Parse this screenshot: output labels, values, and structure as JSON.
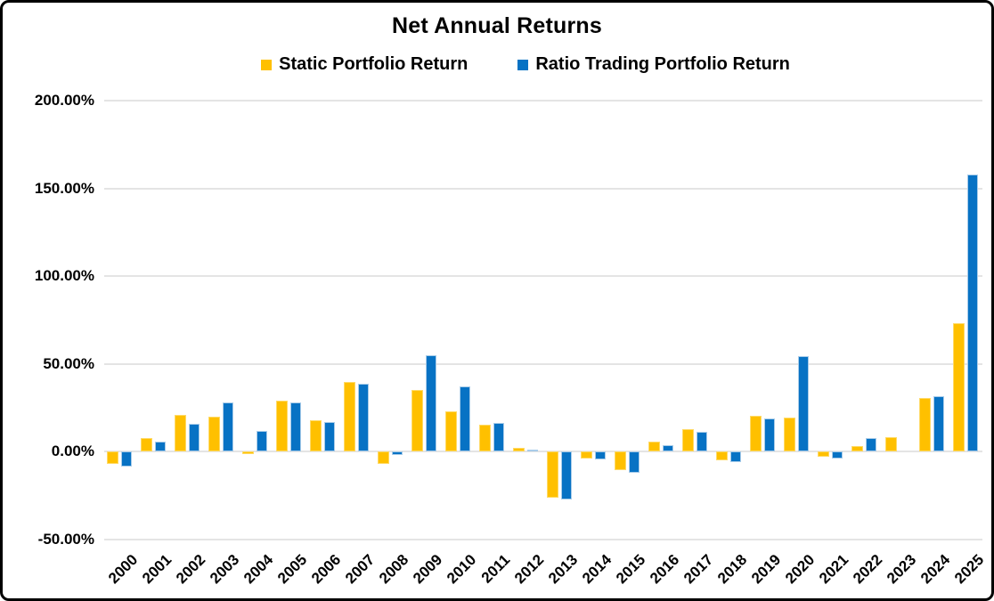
{
  "frame": {
    "background": "#FFFFFF",
    "border_color": "#000000"
  },
  "chart_data": {
    "type": "bar",
    "title": "Net Annual Returns",
    "xlabel": "",
    "ylabel": "",
    "grid": "horizontal",
    "gridline_color": "#E4E4E4",
    "legend_position": "top",
    "ylim": [
      -50,
      200
    ],
    "y_ticks": [
      200,
      150,
      100,
      50,
      0,
      -50
    ],
    "y_tick_labels": [
      "200.00%",
      "150.00%",
      "100.00%",
      "50.00%",
      "0.00%",
      "-50.00%"
    ],
    "categories": [
      "2000",
      "2001",
      "2002",
      "2003",
      "2004",
      "2005",
      "2006",
      "2007",
      "2008",
      "2009",
      "2010",
      "2011",
      "2012",
      "2013",
      "2014",
      "2015",
      "2016",
      "2017",
      "2018",
      "2019",
      "2020",
      "2021",
      "2022",
      "2023",
      "2024",
      "2025"
    ],
    "series": [
      {
        "name": "Static Portfolio Return",
        "color": "#FFC000",
        "edge": "#FFDA66",
        "values": [
          -7,
          8,
          21,
          20,
          -1.5,
          29,
          18,
          40,
          -7,
          35,
          23,
          15.5,
          2.5,
          -26,
          -4,
          -10.5,
          6,
          13,
          -5,
          20.5,
          19.5,
          -3,
          3.5,
          8.5,
          30.5,
          73
        ]
      },
      {
        "name": "Ratio Trading Portfolio Return",
        "color": "#0772C4",
        "edge": "#A9CCE9",
        "values": [
          -8.5,
          6,
          16,
          28,
          12,
          28,
          17,
          39,
          -2,
          55,
          37,
          16.5,
          1,
          -27,
          -4.5,
          -12,
          4,
          11.5,
          -6,
          19,
          54.5,
          -4,
          8,
          0,
          31.5,
          158
        ]
      }
    ]
  }
}
